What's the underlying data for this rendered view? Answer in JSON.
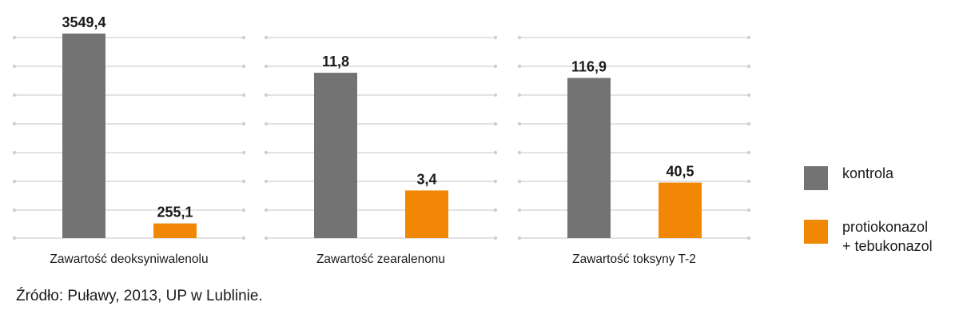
{
  "colors": {
    "kontrola": "#737373",
    "treatment": "#f28705",
    "grid": "#d9d9d9"
  },
  "chart_data": [
    {
      "type": "bar",
      "xlabel": "Zawartość deoksyniwalenolu",
      "ylim": [
        0,
        3549.4
      ],
      "series": [
        {
          "name": "kontrola",
          "values": [
            3549.4
          ],
          "labels": [
            "3549,4"
          ]
        },
        {
          "name": "protiokonazol\n+ tebukonazol",
          "values": [
            255.1
          ],
          "labels": [
            "255,1"
          ]
        }
      ]
    },
    {
      "type": "bar",
      "xlabel": "Zawartość zearalenonu",
      "ylim": [
        0,
        14.6
      ],
      "series": [
        {
          "name": "kontrola",
          "values": [
            11.8
          ],
          "labels": [
            "11,8"
          ]
        },
        {
          "name": "protiokonazol\n+ tebukonazol",
          "values": [
            3.4
          ],
          "labels": [
            "3,4"
          ]
        }
      ]
    },
    {
      "type": "bar",
      "xlabel": "Zawartość toksyny T-2",
      "ylim": [
        0,
        149.3
      ],
      "series": [
        {
          "name": "kontrola",
          "values": [
            116.9
          ],
          "labels": [
            "116,9"
          ]
        },
        {
          "name": "protiokonazol\n+ tebukonazol",
          "values": [
            40.5
          ],
          "labels": [
            "40,5"
          ]
        }
      ]
    }
  ],
  "legend": [
    {
      "label": "kontrola",
      "color": "#737373"
    },
    {
      "label": "protiokonazol\n+ tebukonazol",
      "color": "#f28705"
    }
  ],
  "source": "Źródło: Puławy, 2013, UP w Lublinie."
}
